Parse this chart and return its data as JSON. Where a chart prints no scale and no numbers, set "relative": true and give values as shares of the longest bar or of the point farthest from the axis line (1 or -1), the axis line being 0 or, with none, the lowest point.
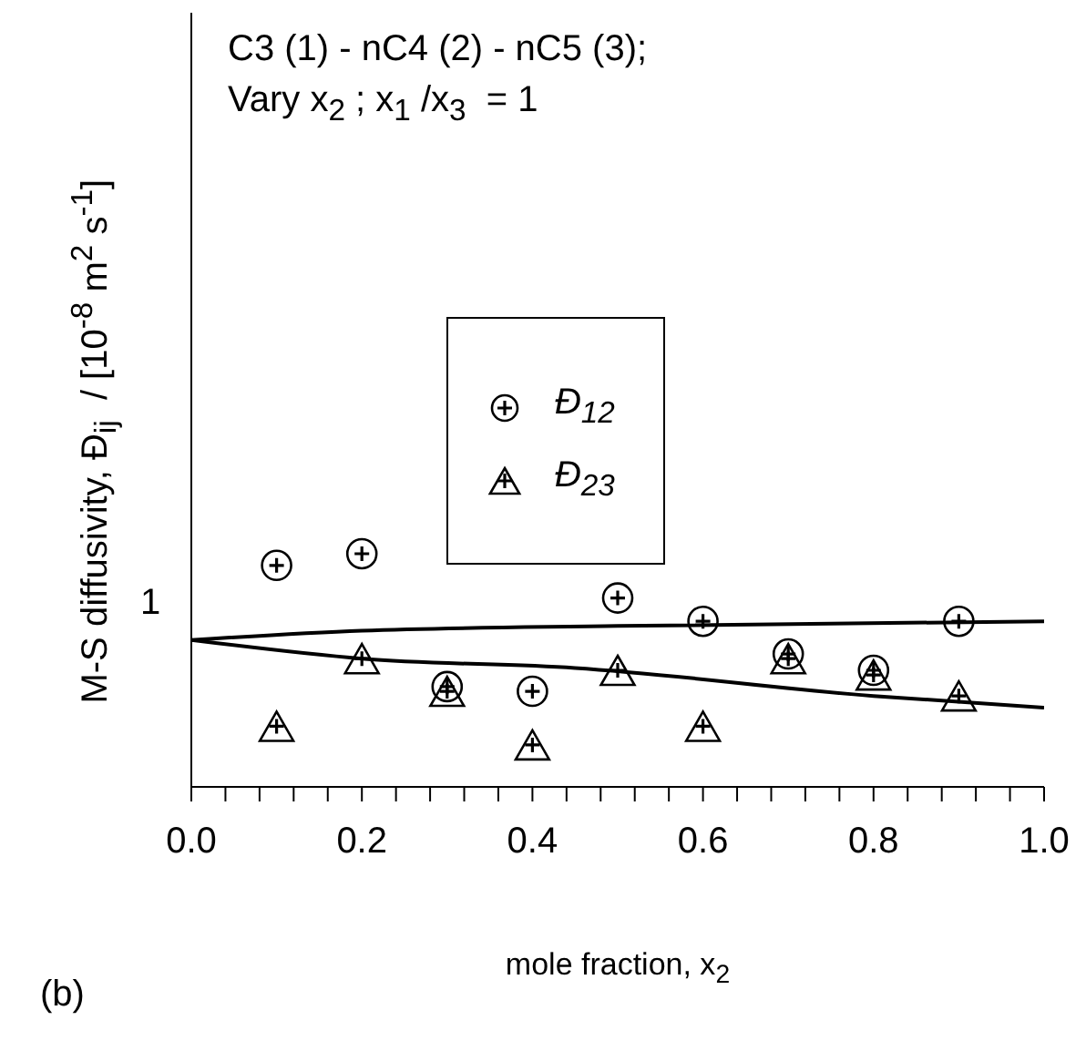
{
  "chart_data": {
    "type": "scatter",
    "title": "C3 (1) - nC4 (2) - nC5 (3);",
    "subtitle": "Vary x$_{2}$ ; x$_{1}$ /x$_{3}$  = 1",
    "xlabel": "mole fraction, x$_{2}$",
    "ylabel": "M-S diffusivity, Đ$_{ij}$  / [10$^{-8}$ m$^{2}$ s$^{-1}$]",
    "annotations": [
      "1",
      "(b)"
    ],
    "relative": true,
    "legend": "center",
    "xlim": [
      0,
      1
    ],
    "xticks": [
      {
        "value": 0,
        "label": "0.0"
      },
      {
        "value": 0.04,
        "label": null
      },
      {
        "value": 0.08,
        "label": null
      },
      {
        "value": 0.12,
        "label": null
      },
      {
        "value": 0.16,
        "label": null
      },
      {
        "value": 0.2,
        "label": "0.2"
      },
      {
        "value": 0.24,
        "label": null
      },
      {
        "value": 0.28,
        "label": null
      },
      {
        "value": 0.32,
        "label": null
      },
      {
        "value": 0.36,
        "label": null
      },
      {
        "value": 0.4,
        "label": "0.4"
      },
      {
        "value": 0.44,
        "label": null
      },
      {
        "value": 0.48,
        "label": null
      },
      {
        "value": 0.52,
        "label": null
      },
      {
        "value": 0.56,
        "label": null
      },
      {
        "value": 0.6,
        "label": "0.6"
      },
      {
        "value": 0.64,
        "label": null
      },
      {
        "value": 0.68,
        "label": null
      },
      {
        "value": 0.72,
        "label": null
      },
      {
        "value": 0.76,
        "label": null
      },
      {
        "value": 0.8,
        "label": "0.8"
      },
      {
        "value": 0.84,
        "label": null
      },
      {
        "value": 0.88,
        "label": null
      },
      {
        "value": 0.92,
        "label": null
      },
      {
        "value": 0.96,
        "label": null
      },
      {
        "value": 1,
        "label": "1.0"
      }
    ],
    "series": [
      {
        "name": "Đ$_{12}$",
        "marker": "circle",
        "color": "#000000",
        "x": [
          0.1,
          0.2,
          0.3,
          0.4,
          0.5,
          0.6,
          0.7,
          0.8,
          0.9
        ],
        "values": [
          0.95,
          1,
          0.43,
          0.41,
          0.81,
          0.71,
          0.57,
          0.5,
          0.71
        ]
      },
      {
        "name": "Đ$_{23}$",
        "marker": "triangle",
        "color": "#000000",
        "x": [
          0.1,
          0.2,
          0.3,
          0.4,
          0.5,
          0.6,
          0.7,
          0.8,
          0.9
        ],
        "values": [
          0.26,
          0.55,
          0.41,
          0.18,
          0.5,
          0.26,
          0.55,
          0.48,
          0.39
        ]
      },
      {
        "type": "line",
        "color": "#000000",
        "x": [
          0,
          0.2,
          0.5,
          1
        ],
        "values": [
          0.63,
          0.67,
          0.69,
          0.71
        ]
      },
      {
        "type": "line",
        "color": "#000000",
        "x": [
          0,
          0.2,
          0.45,
          0.8,
          1
        ],
        "values": [
          0.63,
          0.55,
          0.51,
          0.39,
          0.34
        ]
      }
    ]
  }
}
